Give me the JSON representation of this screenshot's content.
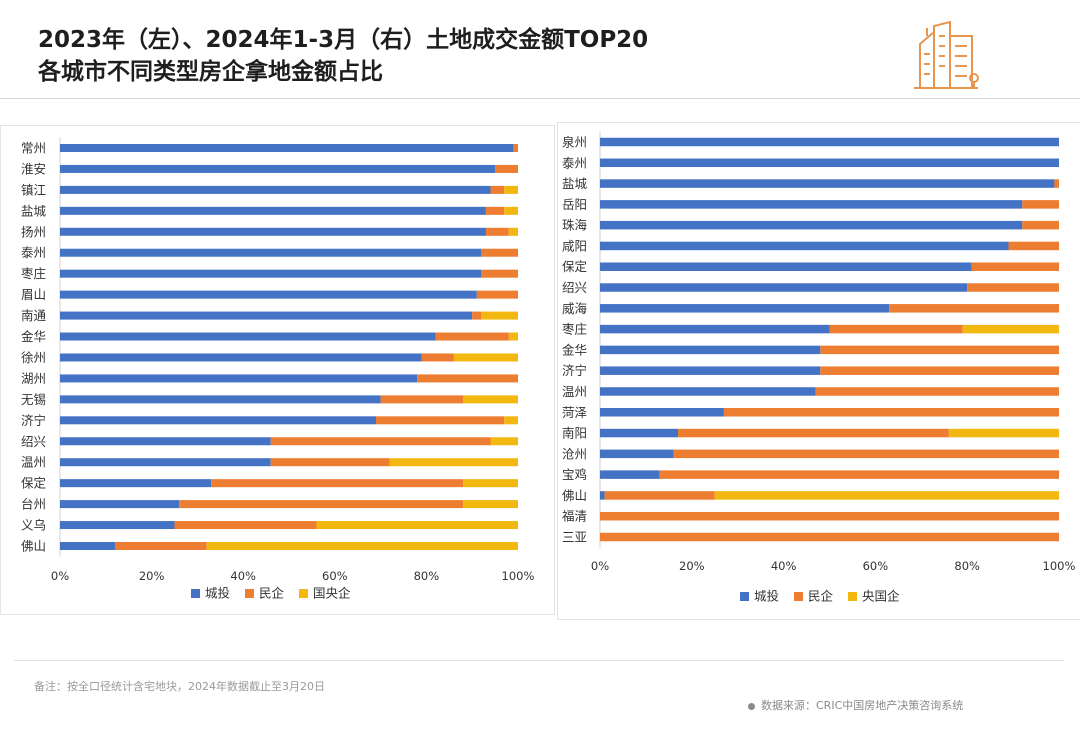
{
  "header": {
    "title_line1": "2023年（左）、2024年1-3月（右）土地成交金额TOP20",
    "title_line2": "各城市不同类型房企拿地金额占比",
    "logo_icon": "city-buildings-icon",
    "accent_color": "#e8954e"
  },
  "chart_data": [
    {
      "type": "bar",
      "orientation": "horizontal",
      "stacked": "percent",
      "categories": [
        "常州",
        "淮安",
        "镇江",
        "盐城",
        "扬州",
        "泰州",
        "枣庄",
        "眉山",
        "南通",
        "金华",
        "徐州",
        "湖州",
        "无锡",
        "济宁",
        "绍兴",
        "温州",
        "保定",
        "台州",
        "义乌",
        "佛山"
      ],
      "series": [
        {
          "name": "城投",
          "color": "#4472c4",
          "values": [
            99,
            95,
            94,
            93,
            93,
            92,
            92,
            91,
            90,
            82,
            79,
            78,
            70,
            69,
            46,
            46,
            33,
            26,
            25,
            12
          ]
        },
        {
          "name": "民企",
          "color": "#ed7d31",
          "values": [
            1,
            5,
            3,
            4,
            5,
            8,
            8,
            9,
            2,
            16,
            7,
            22,
            18,
            28,
            48,
            26,
            55,
            62,
            31,
            20
          ]
        },
        {
          "name": "国央企",
          "color": "#f2b80f",
          "values": [
            0,
            0,
            3,
            3,
            2,
            0,
            0,
            0,
            8,
            2,
            14,
            0,
            12,
            3,
            6,
            28,
            12,
            12,
            44,
            68
          ]
        }
      ],
      "xlim": [
        0,
        100
      ],
      "xticks": [
        "0%",
        "20%",
        "40%",
        "60%",
        "80%",
        "100%"
      ],
      "legend": "bottom",
      "grid": false
    },
    {
      "type": "bar",
      "orientation": "horizontal",
      "stacked": "percent",
      "categories": [
        "泉州",
        "泰州",
        "盐城",
        "岳阳",
        "珠海",
        "咸阳",
        "保定",
        "绍兴",
        "威海",
        "枣庄",
        "金华",
        "济宁",
        "温州",
        "菏泽",
        "南阳",
        "沧州",
        "宝鸡",
        "佛山",
        "福清",
        "三亚"
      ],
      "series": [
        {
          "name": "城投",
          "color": "#4472c4",
          "values": [
            100,
            100,
            99,
            92,
            92,
            89,
            81,
            80,
            63,
            50,
            48,
            48,
            47,
            27,
            17,
            16,
            13,
            1,
            0,
            0
          ]
        },
        {
          "name": "民企",
          "color": "#ed7d31",
          "values": [
            0,
            0,
            1,
            8,
            8,
            11,
            19,
            20,
            37,
            29,
            52,
            52,
            53,
            73,
            59,
            84,
            87,
            24,
            100,
            100
          ]
        },
        {
          "name": "央国企",
          "color": "#f2b80f",
          "values": [
            0,
            0,
            0,
            0,
            0,
            0,
            0,
            0,
            0,
            21,
            0,
            0,
            0,
            0,
            24,
            0,
            0,
            75,
            0,
            0
          ]
        }
      ],
      "xlim": [
        0,
        100
      ],
      "xticks": [
        "0%",
        "20%",
        "40%",
        "60%",
        "80%",
        "100%"
      ],
      "legend": "bottom",
      "grid": false
    }
  ],
  "footer": {
    "note": "备注：按全口径统计含宅地块，2024年数据截止至3月20日",
    "source": "数据来源：CRIC中国房地产决策咨询系统"
  }
}
